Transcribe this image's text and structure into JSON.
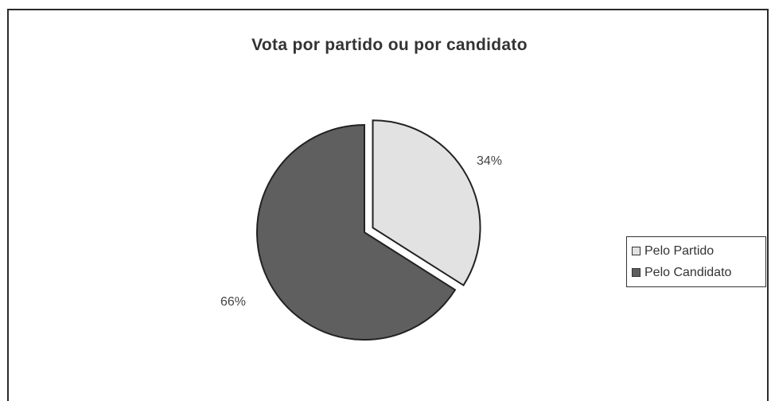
{
  "chart_data": {
    "type": "pie",
    "title": "Vota por partido ou por candidato",
    "slices": [
      {
        "label": "Pelo Partido",
        "value": 34,
        "display": "34%",
        "color": "#e2e2e2",
        "exploded": true
      },
      {
        "label": "Pelo Candidato",
        "value": 66,
        "display": "66%",
        "color": "#5f5f5f",
        "exploded": false
      }
    ],
    "legend_position": "right",
    "start_angle_deg": 0,
    "direction": "clockwise"
  }
}
